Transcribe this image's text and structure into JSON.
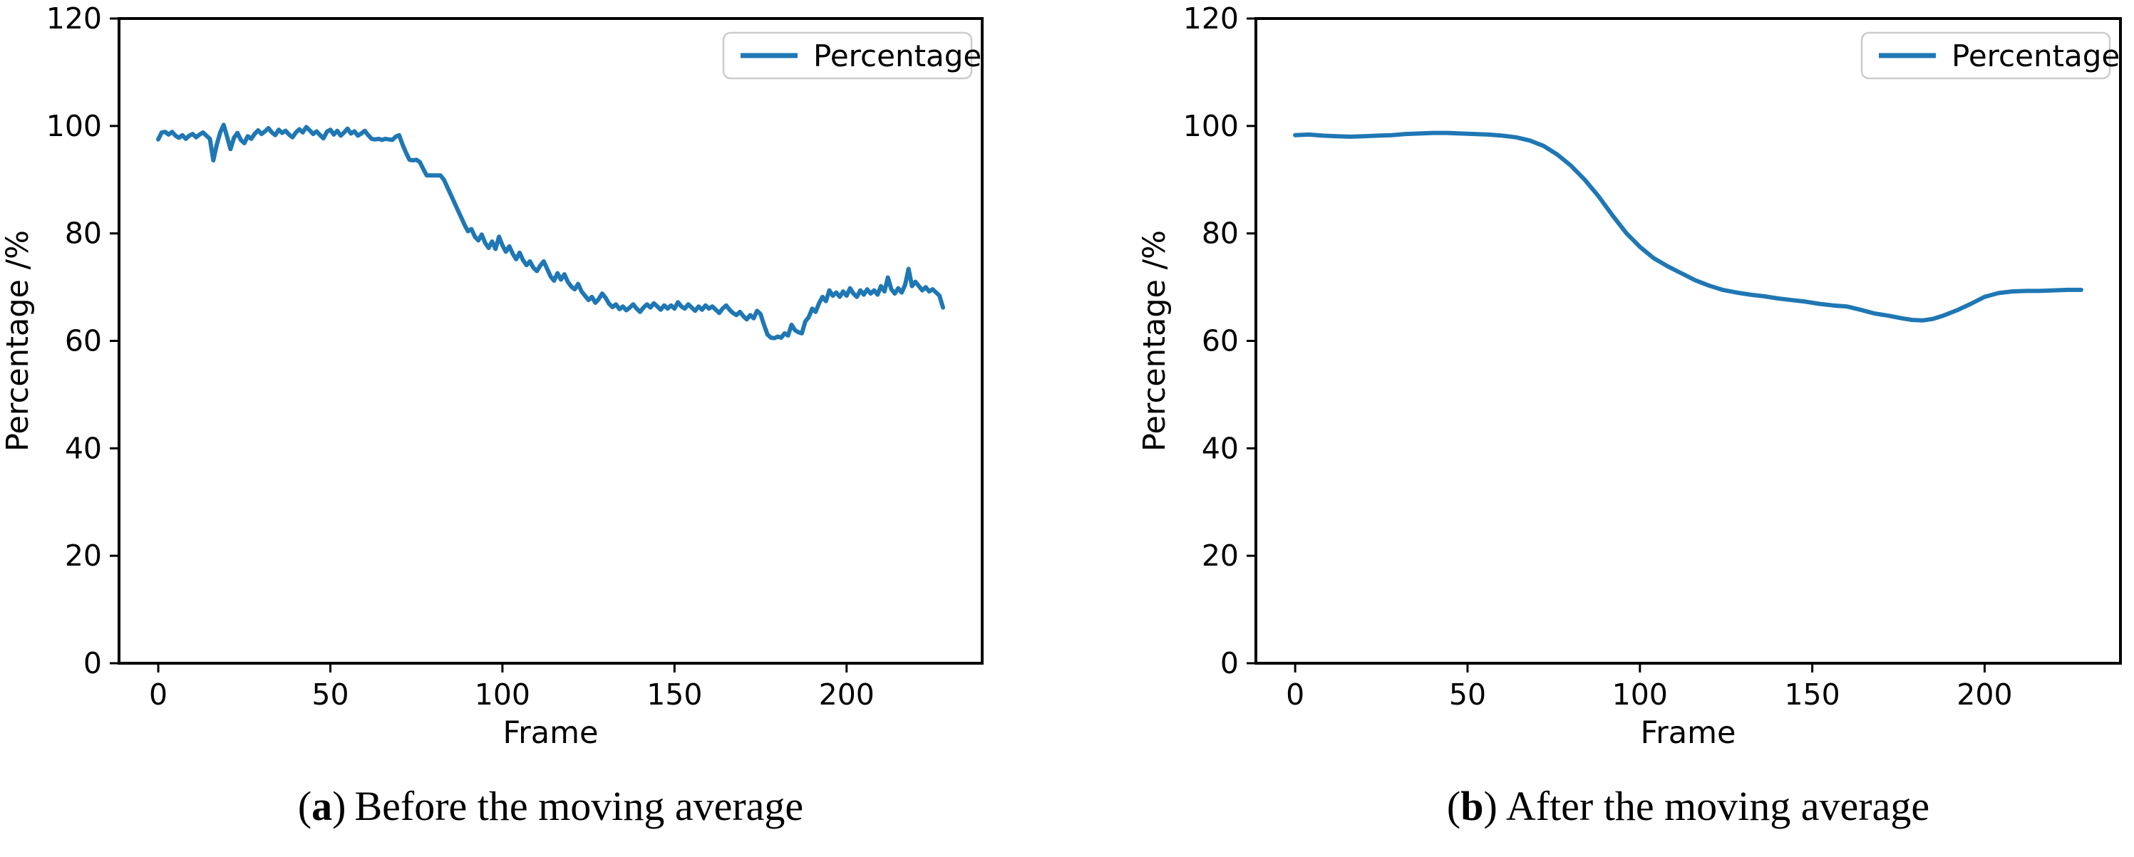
{
  "figure": {
    "background": "#ffffff",
    "line_color": "#1f77b4",
    "legend_border_color": "#cccccc",
    "captions": [
      {
        "open": "(",
        "letter": "a",
        "close": ")",
        "text": "Before the moving average"
      },
      {
        "open": "(",
        "letter": "b",
        "close": ")",
        "text": "After the moving average"
      }
    ]
  },
  "chart_data": [
    {
      "type": "line",
      "title": "(a) Before the moving average",
      "xlabel": "Frame",
      "ylabel": "Percentage /%",
      "xlim": [
        -11.4,
        239.4
      ],
      "ylim": [
        0,
        120
      ],
      "xticks": [
        0,
        50,
        100,
        150,
        200
      ],
      "yticks": [
        0,
        20,
        40,
        60,
        80,
        100,
        120
      ],
      "grid": false,
      "legend": {
        "labels": [
          "Percentage"
        ],
        "position": "upper right"
      },
      "series": [
        {
          "name": "Percentage",
          "x_start": 0,
          "x_step": 1,
          "y": [
            97.5,
            98.8,
            98.9,
            98.4,
            98.9,
            98.2,
            97.8,
            98.3,
            97.6,
            98.2,
            98.5,
            97.9,
            98.4,
            98.8,
            98.2,
            97.6,
            93.6,
            96.5,
            98.8,
            100.2,
            98.0,
            95.7,
            97.8,
            98.7,
            97.4,
            96.8,
            98.1,
            97.6,
            98.5,
            99.2,
            98.5,
            99.0,
            99.6,
            98.8,
            98.3,
            99.3,
            98.7,
            99.1,
            98.4,
            97.9,
            98.8,
            99.4,
            98.8,
            99.8,
            99.2,
            98.5,
            99.0,
            98.3,
            97.7,
            98.9,
            99.3,
            98.4,
            99.1,
            98.2,
            98.8,
            99.5,
            98.6,
            99.0,
            98.2,
            98.6,
            99.1,
            98.3,
            97.6,
            97.5,
            97.6,
            97.4,
            97.6,
            97.5,
            97.4,
            98.0,
            98.3,
            96.5,
            95.0,
            93.7,
            93.6,
            93.7,
            93.3,
            92.0,
            90.8,
            90.8,
            90.8,
            90.8,
            90.8,
            90.0,
            88.6,
            87.2,
            85.8,
            84.4,
            83.0,
            81.6,
            80.4,
            80.8,
            79.4,
            78.7,
            79.8,
            78.2,
            77.3,
            78.5,
            77.1,
            79.4,
            77.8,
            76.6,
            77.6,
            76.2,
            75.2,
            76.4,
            75.0,
            74.1,
            74.8,
            73.6,
            73.0,
            74.0,
            74.8,
            73.4,
            72.0,
            71.2,
            72.6,
            71.4,
            72.4,
            71.0,
            70.1,
            69.6,
            70.6,
            69.2,
            68.4,
            67.6,
            68.2,
            67.1,
            67.8,
            68.8,
            68.0,
            66.9,
            66.3,
            66.8,
            65.9,
            66.4,
            65.7,
            66.2,
            66.8,
            66.0,
            65.4,
            66.2,
            66.8,
            66.2,
            67.0,
            66.4,
            65.8,
            66.6,
            66.0,
            66.6,
            66.0,
            67.2,
            66.4,
            66.0,
            66.8,
            66.2,
            65.6,
            66.4,
            65.8,
            66.6,
            66.0,
            66.4,
            65.8,
            65.2,
            66.0,
            66.6,
            65.8,
            65.2,
            64.8,
            65.4,
            64.6,
            64.0,
            64.8,
            64.2,
            65.6,
            65.0,
            63.0,
            61.2,
            60.6,
            60.5,
            60.8,
            60.6,
            61.4,
            61.0,
            63.0,
            62.0,
            61.6,
            61.4,
            63.6,
            64.4,
            66.0,
            65.4,
            67.0,
            68.2,
            67.4,
            69.4,
            68.4,
            69.0,
            68.2,
            69.2,
            68.4,
            69.8,
            68.8,
            68.2,
            69.4,
            68.6,
            69.6,
            68.8,
            69.4,
            68.6,
            70.2,
            69.2,
            71.8,
            69.6,
            68.8,
            69.8,
            69.0,
            70.4,
            73.4,
            70.2,
            71.0,
            70.2,
            69.4,
            70.0,
            69.2,
            69.6,
            69.0,
            68.4,
            66.2
          ]
        }
      ]
    },
    {
      "type": "line",
      "title": "(b) After the moving average",
      "xlabel": "Frame",
      "ylabel": "Percentage /%",
      "xlim": [
        -11.4,
        239.4
      ],
      "ylim": [
        0,
        120
      ],
      "xticks": [
        0,
        50,
        100,
        150,
        200
      ],
      "yticks": [
        0,
        20,
        40,
        60,
        80,
        100,
        120
      ],
      "grid": false,
      "legend": {
        "labels": [
          "Percentage"
        ],
        "position": "upper right"
      },
      "series": [
        {
          "name": "Percentage",
          "x": [
            0,
            4,
            8,
            12,
            16,
            20,
            24,
            28,
            32,
            36,
            40,
            44,
            48,
            52,
            56,
            60,
            64,
            68,
            72,
            76,
            80,
            84,
            88,
            92,
            96,
            100,
            104,
            108,
            112,
            116,
            120,
            124,
            128,
            132,
            136,
            140,
            144,
            148,
            152,
            156,
            160,
            164,
            168,
            172,
            176,
            179,
            182,
            185,
            188,
            192,
            196,
            200,
            204,
            208,
            212,
            216,
            220,
            224,
            228
          ],
          "y": [
            98.3,
            98.4,
            98.2,
            98.1,
            98.0,
            98.1,
            98.2,
            98.3,
            98.5,
            98.6,
            98.7,
            98.7,
            98.6,
            98.5,
            98.4,
            98.2,
            97.9,
            97.3,
            96.3,
            94.7,
            92.6,
            90.0,
            86.9,
            83.4,
            80.1,
            77.5,
            75.4,
            73.9,
            72.6,
            71.3,
            70.3,
            69.5,
            69.0,
            68.6,
            68.3,
            67.9,
            67.6,
            67.3,
            66.9,
            66.6,
            66.4,
            65.8,
            65.1,
            64.7,
            64.2,
            63.9,
            63.8,
            64.1,
            64.7,
            65.7,
            66.9,
            68.2,
            68.9,
            69.2,
            69.3,
            69.3,
            69.4,
            69.5,
            69.5
          ]
        }
      ]
    }
  ]
}
